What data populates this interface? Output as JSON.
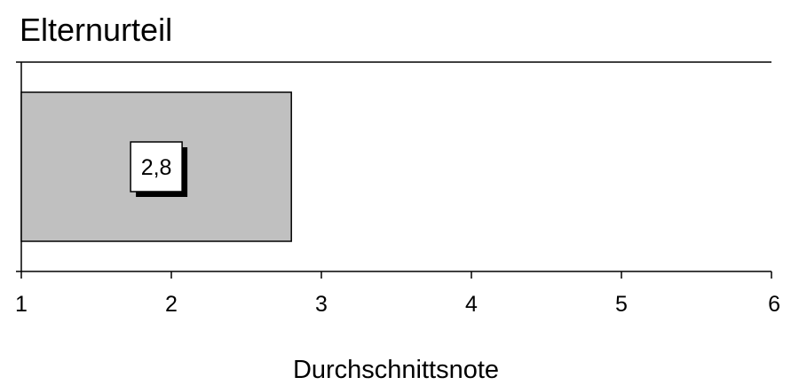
{
  "chart_data": {
    "type": "bar",
    "orientation": "horizontal",
    "title": "Elternurteil",
    "xlabel": "Durchschnittsnote",
    "ylabel": "",
    "xlim": [
      1,
      6
    ],
    "x_ticks": [
      "1",
      "2",
      "3",
      "4",
      "5",
      "6"
    ],
    "categories": [
      ""
    ],
    "values": [
      2.8
    ],
    "data_labels": [
      "2,8"
    ],
    "grid": false,
    "legend": "none",
    "colors": {
      "bar_fill": "#c0c0c0",
      "bar_stroke": "#000000",
      "axis": "#000000",
      "label_box_fill": "#ffffff",
      "label_shadow": "#000000"
    }
  }
}
